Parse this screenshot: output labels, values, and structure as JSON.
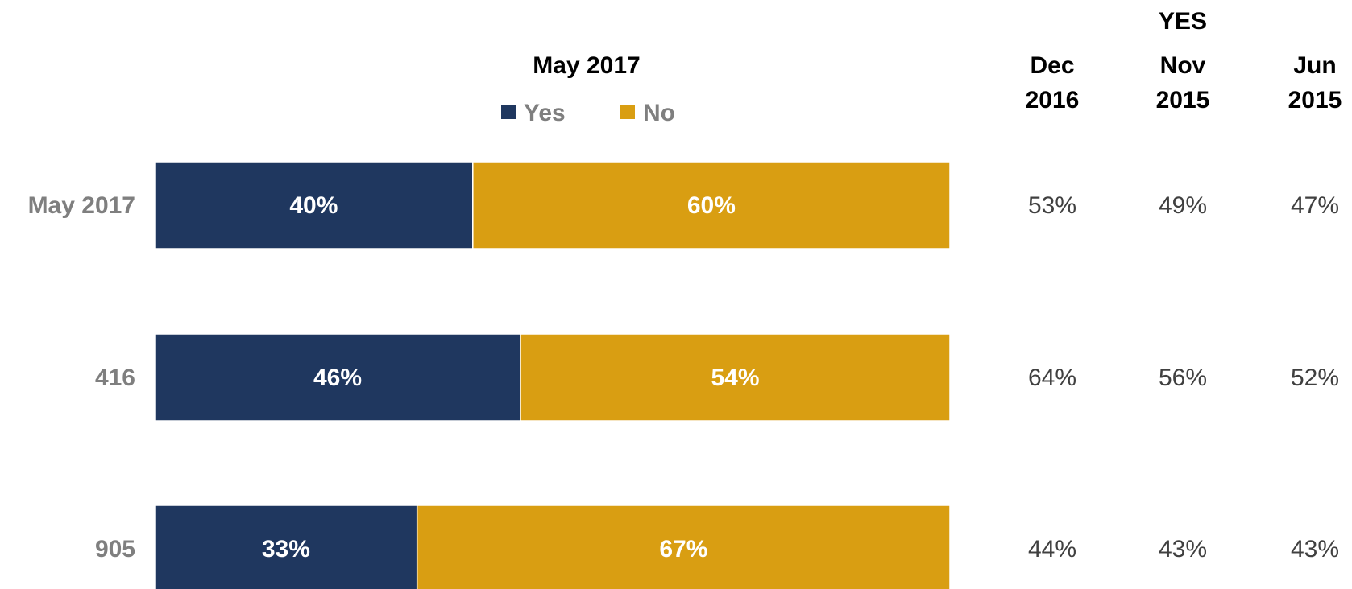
{
  "chart_data": {
    "type": "bar",
    "orientation": "horizontal",
    "stacked": true,
    "title": "May 2017",
    "legend": {
      "placement": "top-center",
      "entries": [
        "Yes",
        "No"
      ]
    },
    "categories": [
      "May 2017",
      "416",
      "905"
    ],
    "series": [
      {
        "name": "Yes",
        "color": "#1f375f",
        "values": [
          40,
          46,
          33
        ],
        "labels": [
          "40%",
          "46%",
          "33%"
        ]
      },
      {
        "name": "No",
        "color": "#d99e12",
        "values": [
          60,
          54,
          67
        ],
        "labels": [
          "60%",
          "54%",
          "67%"
        ]
      }
    ],
    "xlim": [
      0,
      100
    ],
    "grid": false,
    "comparison_table": {
      "title": "YES",
      "columns": [
        {
          "line1": "Dec",
          "line2": "2016",
          "values": [
            "53%",
            "64%",
            "44%"
          ]
        },
        {
          "line1": "Nov",
          "line2": "2015",
          "values": [
            "49%",
            "56%",
            "43%"
          ]
        },
        {
          "line1": "Jun",
          "line2": "2015",
          "values": [
            "47%",
            "52%",
            "43%"
          ]
        }
      ]
    }
  }
}
